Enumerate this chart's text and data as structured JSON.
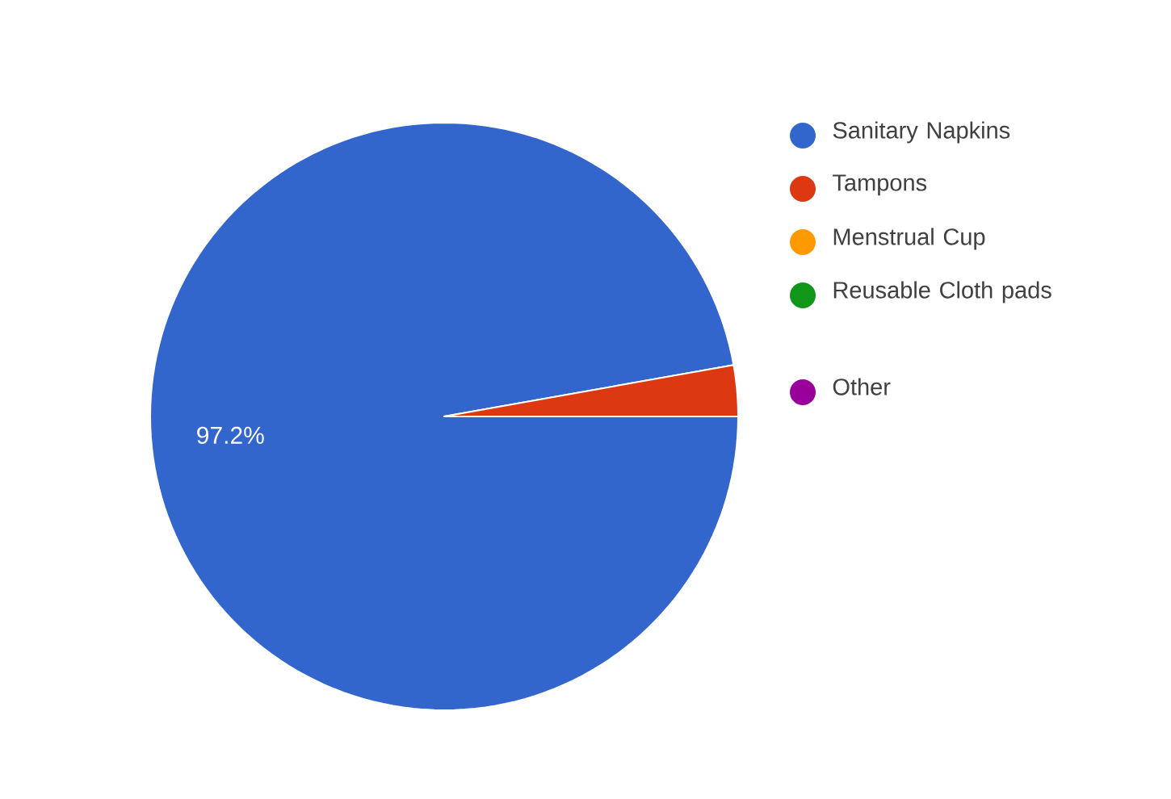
{
  "chart_data": {
    "type": "pie",
    "categories": [
      "Sanitary Napkins",
      "Tampons",
      "Menstrual Cup",
      "Reusable Cloth pads",
      "Other"
    ],
    "values": [
      97.2,
      2.8,
      0,
      0,
      0
    ],
    "colors": [
      "#3366cc",
      "#dc3912",
      "#ff9900",
      "#109618",
      "#990099"
    ],
    "value_labels": [
      "97.2%",
      null,
      null,
      null,
      null
    ],
    "legend": "right"
  }
}
